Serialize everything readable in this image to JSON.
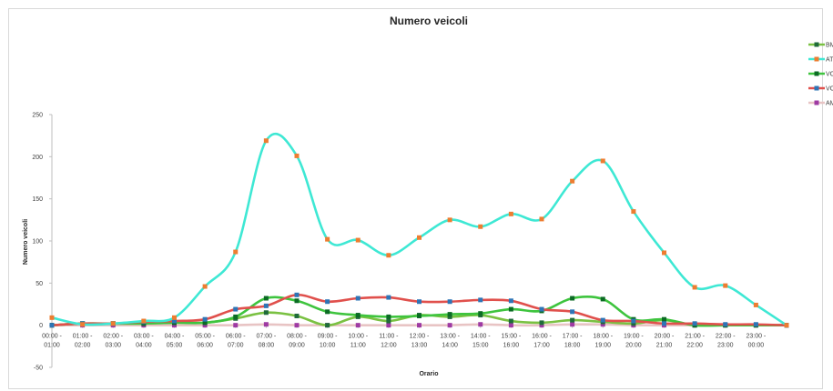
{
  "chart_data": {
    "type": "line",
    "title": "Numero veicoli",
    "xlabel": "Orario",
    "ylabel": "Numero veicoli",
    "ylim": [
      -50,
      250
    ],
    "yticks": [
      -50,
      0,
      50,
      100,
      150,
      200,
      250
    ],
    "grid": false,
    "legend_position": "right",
    "categories": [
      [
        "00:00 -",
        "01:00"
      ],
      [
        "01:00 -",
        "02:00"
      ],
      [
        "02:00 -",
        "03:00"
      ],
      [
        "03:00 -",
        "04:00"
      ],
      [
        "04:00 -",
        "05:00"
      ],
      [
        "05:00 -",
        "06:00"
      ],
      [
        "06:00 -",
        "07:00"
      ],
      [
        "07:00 -",
        "08:00"
      ],
      [
        "08:00 -",
        "09:00"
      ],
      [
        "09:00 -",
        "10:00"
      ],
      [
        "10:00 -",
        "11:00"
      ],
      [
        "11:00 -",
        "12:00"
      ],
      [
        "12:00 -",
        "13:00"
      ],
      [
        "13:00 -",
        "14:00"
      ],
      [
        "14:00 -",
        "15:00"
      ],
      [
        "15:00 -",
        "16:00"
      ],
      [
        "16:00 -",
        "17:00"
      ],
      [
        "17:00 -",
        "18:00"
      ],
      [
        "18:00 -",
        "19:00"
      ],
      [
        "19:00 -",
        "20:00"
      ],
      [
        "20:00 -",
        "21:00"
      ],
      [
        "21:00 -",
        "22:00"
      ],
      [
        "22:00 -",
        "23:00"
      ],
      [
        "23:00 -",
        "00:00"
      ],
      [
        "",
        ""
      ]
    ],
    "series": [
      {
        "name": "BM",
        "line_color": "#7ac142",
        "marker_color": "#1f6b3a",
        "values": [
          0,
          2,
          2,
          2,
          3,
          3,
          8,
          15,
          11,
          0,
          10,
          5,
          12,
          10,
          12,
          5,
          3,
          6,
          4,
          2,
          6,
          0,
          0,
          0,
          0
        ]
      },
      {
        "name": "AT",
        "line_color": "#3ee8d4",
        "marker_color": "#ed7d31",
        "values": [
          9,
          1,
          2,
          5,
          9,
          46,
          87,
          219,
          201,
          102,
          101,
          83,
          104,
          125,
          117,
          132,
          126,
          171,
          195,
          135,
          86,
          45,
          47,
          24,
          0
        ]
      },
      {
        "name": "VC",
        "line_color": "#3ec43e",
        "marker_color": "#0b6b24",
        "values": [
          0,
          2,
          2,
          2,
          3,
          3,
          10,
          32,
          29,
          16,
          12,
          10,
          11,
          13,
          14,
          19,
          17,
          32,
          31,
          7,
          7,
          0,
          0,
          0,
          0
        ]
      },
      {
        "name": "VC",
        "line_color": "#e0504c",
        "marker_color": "#2e75b6",
        "values": [
          0,
          2,
          2,
          4,
          5,
          7,
          19,
          23,
          36,
          28,
          32,
          33,
          28,
          28,
          30,
          29,
          19,
          16,
          6,
          5,
          2,
          2,
          1,
          1,
          0
        ]
      },
      {
        "name": "AM",
        "line_color": "#e8c4c4",
        "marker_color": "#9e3aa3",
        "values": [
          0,
          0,
          0,
          0,
          0,
          0,
          0,
          1,
          0,
          0,
          0,
          0,
          0,
          0,
          1,
          0,
          0,
          1,
          1,
          0,
          0,
          0,
          0,
          0,
          0
        ]
      }
    ]
  }
}
